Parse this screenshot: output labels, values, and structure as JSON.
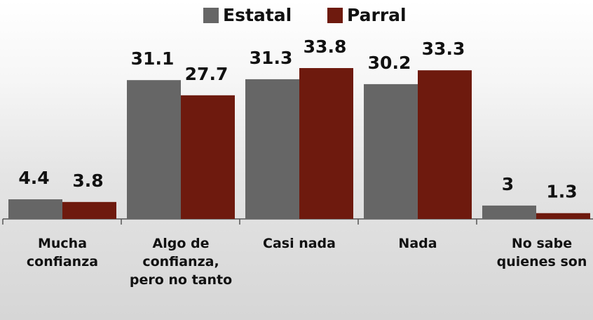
{
  "chart_data": {
    "type": "bar",
    "categories": [
      "Mucha confianza",
      "Algo de confianza, pero no tanto",
      "Casi nada",
      "Nada",
      "No sabe quienes son"
    ],
    "series": [
      {
        "name": "Estatal",
        "color": "#666666",
        "values": [
          4.4,
          31.1,
          31.3,
          30.2,
          3
        ]
      },
      {
        "name": "Parral",
        "color": "#6e1a0e",
        "values": [
          3.8,
          27.7,
          33.8,
          33.3,
          1.3
        ]
      }
    ]
  }
}
